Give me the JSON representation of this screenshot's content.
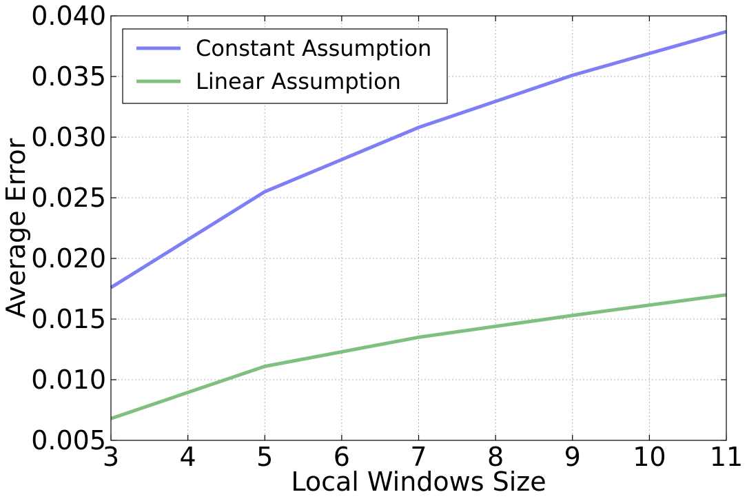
{
  "chart_data": {
    "type": "line",
    "title": "",
    "xlabel": "Local Windows Size",
    "ylabel": "Average Error",
    "x": [
      3,
      5,
      7,
      9,
      11
    ],
    "xlim": [
      3,
      11
    ],
    "ylim": [
      0.005,
      0.04
    ],
    "x_ticks": [
      "3",
      "4",
      "5",
      "6",
      "7",
      "8",
      "9",
      "10",
      "11"
    ],
    "y_ticks": [
      "0.005",
      "0.010",
      "0.015",
      "0.020",
      "0.025",
      "0.030",
      "0.035",
      "0.040"
    ],
    "grid": true,
    "legend_position": "top-left",
    "series": [
      {
        "name": "Constant Assumption",
        "color": "#7f7ff5",
        "values": [
          0.0176,
          0.0255,
          0.0308,
          0.0351,
          0.0387
        ]
      },
      {
        "name": "Linear Assumption",
        "color": "#7fbf7f",
        "values": [
          0.0068,
          0.0111,
          0.0135,
          0.0153,
          0.017
        ]
      }
    ]
  }
}
